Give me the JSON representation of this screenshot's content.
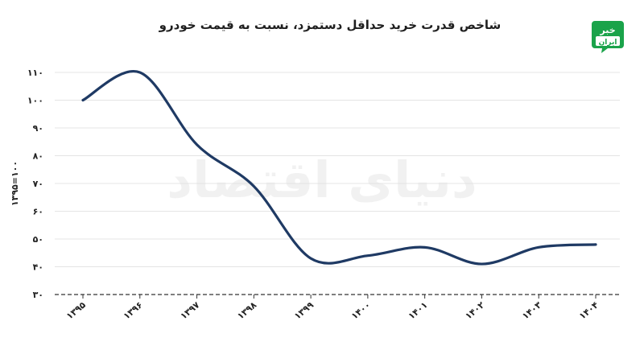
{
  "chart_data": {
    "type": "line",
    "title": "شاخص قدرت خرید حداقل دستمزد، نسبت به قیمت خودرو",
    "ylabel": "۱۳۹۵=۱۰۰",
    "xlabel": "",
    "categories": [
      "۱۳۹۵",
      "۱۳۹۶",
      "۱۳۹۷",
      "۱۳۹۸",
      "۱۳۹۹",
      "۱۴۰۰",
      "۱۴۰۱",
      "۱۴۰۲",
      "۱۴۰۳",
      "۱۴۰۴"
    ],
    "series": [
      {
        "values": [
          100,
          110,
          84,
          69,
          43,
          44,
          47,
          41,
          47,
          48
        ]
      }
    ],
    "ylim": [
      30,
      110
    ],
    "yticks": [
      30,
      40,
      50,
      60,
      70,
      80,
      90,
      100,
      110
    ],
    "ytick_labels": [
      "۳۰",
      "۴۰",
      "۵۰",
      "۶۰",
      "۷۰",
      "۸۰",
      "۹۰",
      "۱۰۰",
      "۱۱۰"
    ],
    "grid": true,
    "line_color": "#1f3a64",
    "watermark": "دنیای اقتصاد"
  },
  "logo": {
    "top_text": "خبر",
    "bottom_text": "ایران",
    "color": "#1aa34a"
  }
}
